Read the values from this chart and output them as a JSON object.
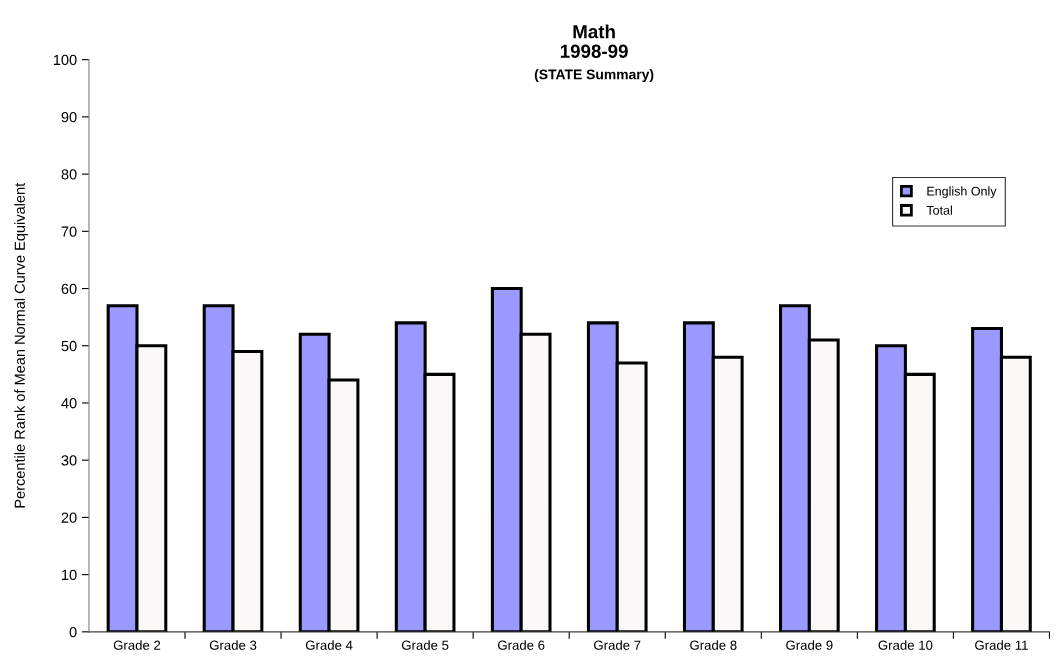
{
  "chart_data": {
    "type": "bar",
    "title": "Math\n1998-99",
    "subtitle": "(STATE Summary)",
    "ylabel": "Percentile Rank of Mean Normal Curve Equivalent",
    "categories": [
      "Grade 2",
      "Grade 3",
      "Grade 4",
      "Grade 5",
      "Grade 6",
      "Grade 7",
      "Grade 8",
      "Grade 9",
      "Grade 10",
      "Grade 11"
    ],
    "series": [
      {
        "name": "English Only",
        "color": "#9999ff",
        "values": [
          57,
          57,
          52,
          54,
          60,
          54,
          54,
          57,
          50,
          53
        ]
      },
      {
        "name": "Total",
        "color": "#fbf8f8",
        "values": [
          50,
          49,
          44,
          45,
          52,
          47,
          48,
          51,
          45,
          48
        ]
      }
    ],
    "ylim": [
      0,
      100
    ],
    "yticks": [
      0,
      10,
      20,
      30,
      40,
      50,
      60,
      70,
      80,
      90,
      100
    ],
    "grid": false,
    "legend": "top right"
  }
}
